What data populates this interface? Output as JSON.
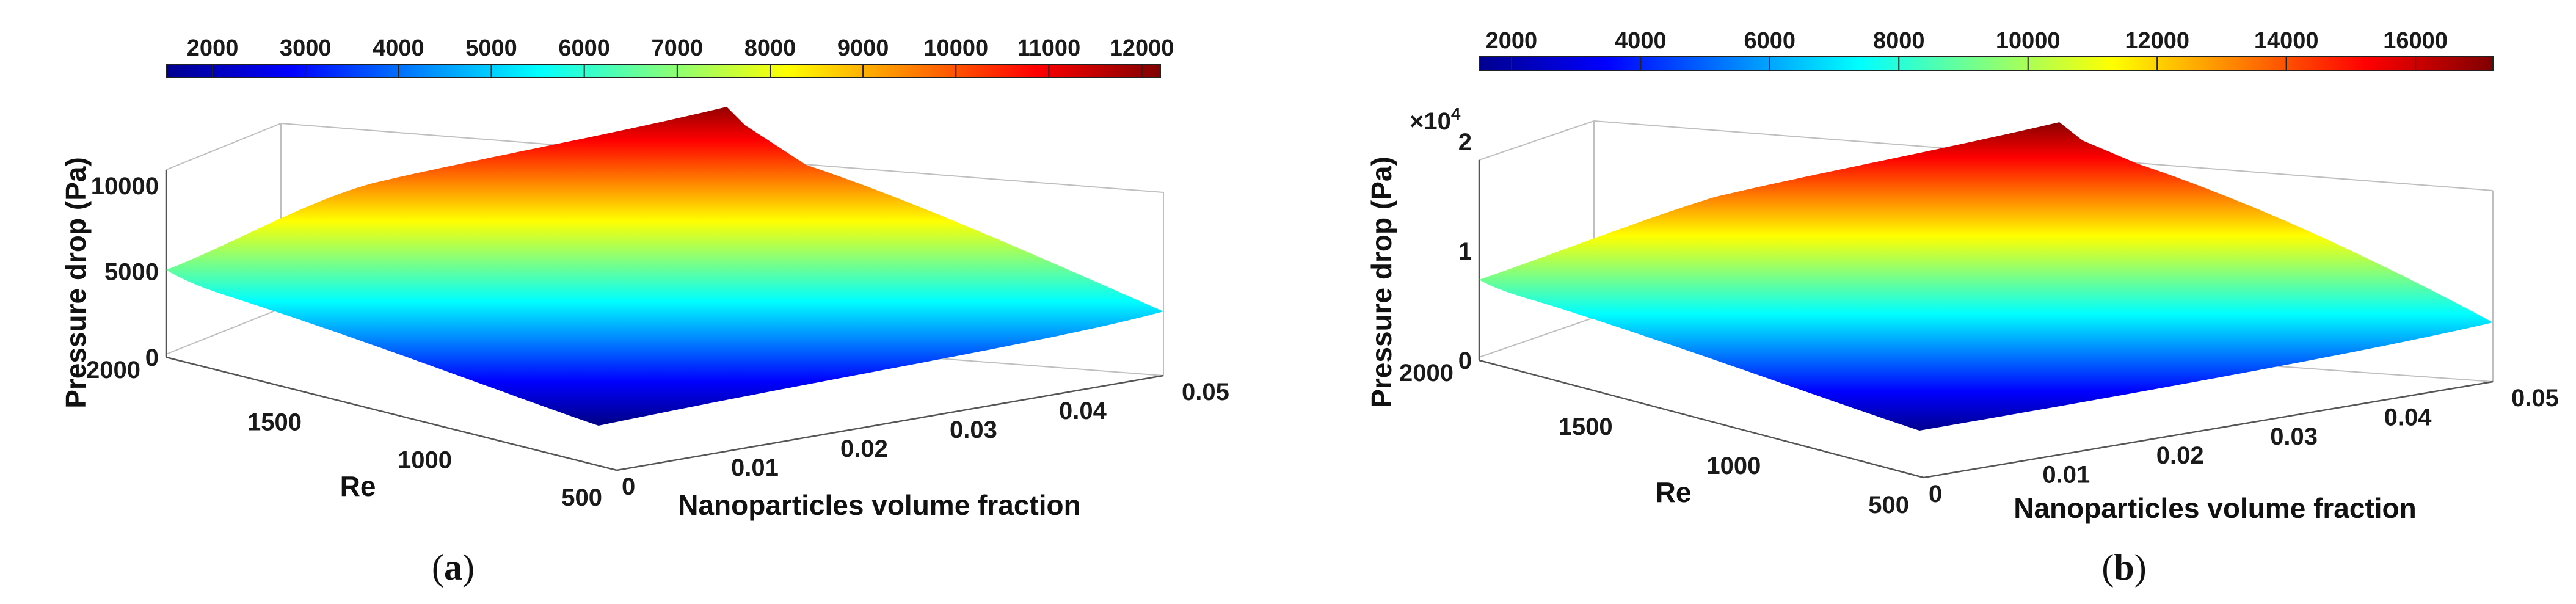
{
  "chart_data": [
    {
      "type": "surface",
      "panel_label": "a",
      "zlabel": "Pressure drop (Pa)",
      "xlabel": "Nanoparticles volume fraction",
      "ylabel": "Re",
      "x_ticks": [
        "0",
        "0.01",
        "0.02",
        "0.03",
        "0.04",
        "0.05"
      ],
      "y_ticks": [
        "2000",
        "1500",
        "1000",
        "500"
      ],
      "z_ticks": [
        "0",
        "5000",
        "10000"
      ],
      "z_exponent": "",
      "colorbar_ticks": [
        "2000",
        "3000",
        "4000",
        "5000",
        "6000",
        "7000",
        "8000",
        "9000",
        "10000",
        "11000",
        "12000"
      ],
      "xlim": [
        0,
        0.05
      ],
      "ylim": [
        500,
        2000
      ],
      "zlim": [
        0,
        12000
      ],
      "clim": [
        1500,
        12200
      ],
      "corners": {
        "vf0_re2000": 5500,
        "vf005_re2000": 12500,
        "vf005_re500": 2600,
        "vf0_re500": 1100
      }
    },
    {
      "type": "surface",
      "panel_label": "b",
      "zlabel": "Pressure drop (Pa)",
      "xlabel": "Nanoparticles volume fraction",
      "ylabel": "Re",
      "x_ticks": [
        "0",
        "0.01",
        "0.02",
        "0.03",
        "0.04",
        "0.05"
      ],
      "y_ticks": [
        "2000",
        "1500",
        "1000",
        "500"
      ],
      "z_ticks": [
        "0",
        "1",
        "2"
      ],
      "z_exponent": "×10",
      "z_exponent_power": "4",
      "colorbar_ticks": [
        "2000",
        "4000",
        "6000",
        "8000",
        "10000",
        "12000",
        "14000",
        "16000"
      ],
      "xlim": [
        0,
        0.05
      ],
      "ylim": [
        500,
        2000
      ],
      "zlim": [
        0,
        20000
      ],
      "clim": [
        1500,
        17200
      ],
      "corners": {
        "vf0_re2000": 7800,
        "vf005_re2000": 19500,
        "vf005_re500": 3800,
        "vf0_re500": 1500
      }
    }
  ]
}
